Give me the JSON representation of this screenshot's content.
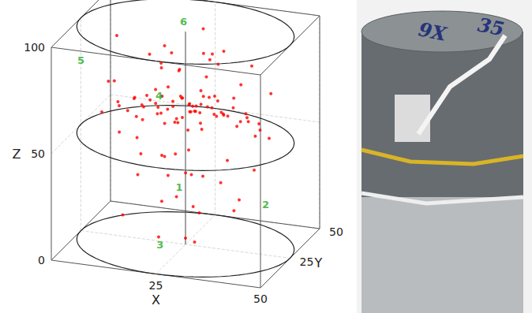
{
  "chart_data": {
    "type": "scatter3d",
    "xlabel": "X",
    "ylabel": "Y",
    "zlabel": "Z",
    "xlim": [
      0,
      50
    ],
    "ylim": [
      0,
      50
    ],
    "zlim": [
      0,
      100
    ],
    "xticks": [
      25,
      50
    ],
    "yticks": [
      25,
      50
    ],
    "zticks": [
      0,
      50,
      100
    ],
    "grid": true,
    "color": "#ff0000",
    "marker": "circle",
    "points": [
      [
        20,
        22,
        62
      ],
      [
        25,
        28,
        64
      ],
      [
        30,
        20,
        61
      ],
      [
        18,
        30,
        65
      ],
      [
        27,
        24,
        66
      ],
      [
        33,
        27,
        63
      ],
      [
        22,
        18,
        60
      ],
      [
        15,
        25,
        62
      ],
      [
        28,
        33,
        61
      ],
      [
        35,
        22,
        65
      ],
      [
        24,
        26,
        68
      ],
      [
        19,
        21,
        67
      ],
      [
        31,
        30,
        59
      ],
      [
        26,
        15,
        63
      ],
      [
        12,
        28,
        64
      ],
      [
        38,
        30,
        62
      ],
      [
        21,
        35,
        63
      ],
      [
        29,
        26,
        70
      ],
      [
        17,
        17,
        61
      ],
      [
        34,
        34,
        66
      ],
      [
        23,
        23,
        58
      ],
      [
        27,
        20,
        57
      ],
      [
        40,
        24,
        64
      ],
      [
        10,
        22,
        63
      ],
      [
        25,
        38,
        65
      ],
      [
        32,
        14,
        62
      ],
      [
        14,
        34,
        60
      ],
      [
        36,
        18,
        68
      ],
      [
        20,
        28,
        71
      ],
      [
        30,
        32,
        67
      ],
      [
        8,
        28,
        61
      ],
      [
        42,
        27,
        60
      ],
      [
        26,
        30,
        60
      ],
      [
        22,
        25,
        64
      ],
      [
        28,
        22,
        65
      ],
      [
        18,
        26,
        59
      ],
      [
        33,
        24,
        70
      ],
      [
        24,
        32,
        62
      ],
      [
        16,
        20,
        66
      ],
      [
        37,
        26,
        58
      ],
      [
        12,
        15,
        55
      ],
      [
        40,
        35,
        52
      ],
      [
        20,
        40,
        50
      ],
      [
        30,
        10,
        54
      ],
      [
        5,
        25,
        57
      ],
      [
        45,
        25,
        55
      ],
      [
        25,
        5,
        53
      ],
      [
        25,
        45,
        58
      ],
      [
        15,
        40,
        72
      ],
      [
        35,
        12,
        74
      ],
      [
        44,
        30,
        73
      ],
      [
        8,
        20,
        75
      ],
      [
        22,
        30,
        78
      ],
      [
        30,
        25,
        80
      ],
      [
        18,
        12,
        48
      ],
      [
        38,
        38,
        47
      ],
      [
        28,
        42,
        76
      ],
      [
        11,
        33,
        52
      ],
      [
        34,
        40,
        69
      ],
      [
        16,
        8,
        70
      ],
      [
        42,
        18,
        66
      ],
      [
        6,
        32,
        68
      ],
      [
        24,
        20,
        45
      ],
      [
        32,
        36,
        56
      ],
      [
        20,
        10,
        77
      ],
      [
        20,
        25,
        40
      ],
      [
        30,
        22,
        35
      ],
      [
        25,
        30,
        30
      ],
      [
        18,
        35,
        25
      ],
      [
        35,
        25,
        42
      ],
      [
        27,
        18,
        38
      ],
      [
        22,
        28,
        20
      ],
      [
        15,
        20,
        33
      ],
      [
        32,
        30,
        28
      ],
      [
        28,
        26,
        15
      ],
      [
        38,
        20,
        22
      ],
      [
        12,
        30,
        44
      ],
      [
        24,
        35,
        12
      ],
      [
        30,
        15,
        8
      ],
      [
        20,
        20,
        5
      ],
      [
        35,
        35,
        18
      ],
      [
        25,
        25,
        3
      ],
      [
        10,
        25,
        10
      ],
      [
        40,
        30,
        36
      ],
      [
        23,
        12,
        27
      ],
      [
        25,
        20,
        85
      ],
      [
        30,
        30,
        88
      ],
      [
        20,
        25,
        92
      ],
      [
        15,
        30,
        84
      ],
      [
        35,
        22,
        95
      ],
      [
        28,
        35,
        82
      ],
      [
        22,
        15,
        90
      ],
      [
        10,
        20,
        97
      ],
      [
        40,
        28,
        86
      ],
      [
        25,
        40,
        93
      ],
      [
        33,
        12,
        99
      ],
      [
        18,
        38,
        81
      ],
      [
        21,
        24,
        63
      ],
      [
        26,
        26,
        62
      ],
      [
        29,
        23,
        64
      ],
      [
        23,
        29,
        66
      ],
      [
        19,
        23,
        64
      ],
      [
        31,
        28,
        61
      ],
      [
        27,
        31,
        63
      ],
      [
        24,
        21,
        61
      ],
      [
        20,
        32,
        62
      ],
      [
        35,
        30,
        64
      ],
      [
        13,
        24,
        66
      ],
      [
        39,
        22,
        63
      ],
      [
        28,
        18,
        67
      ],
      [
        17,
        28,
        69
      ],
      [
        25,
        34,
        60
      ]
    ],
    "annotations": [
      {
        "text": "1",
        "x": 30,
        "y": 2,
        "z": 41
      },
      {
        "text": "2",
        "x": 47,
        "y": 15,
        "z": 30
      },
      {
        "text": "3",
        "x": 26,
        "y": 0,
        "z": 14
      },
      {
        "text": "4",
        "x": 15,
        "y": 38,
        "z": 60
      },
      {
        "text": "5",
        "x": 0,
        "y": 25,
        "z": 80
      },
      {
        "text": "6",
        "x": 18,
        "y": 48,
        "z": 90
      }
    ]
  },
  "photo": {
    "labels": [
      "9X",
      "35"
    ]
  }
}
